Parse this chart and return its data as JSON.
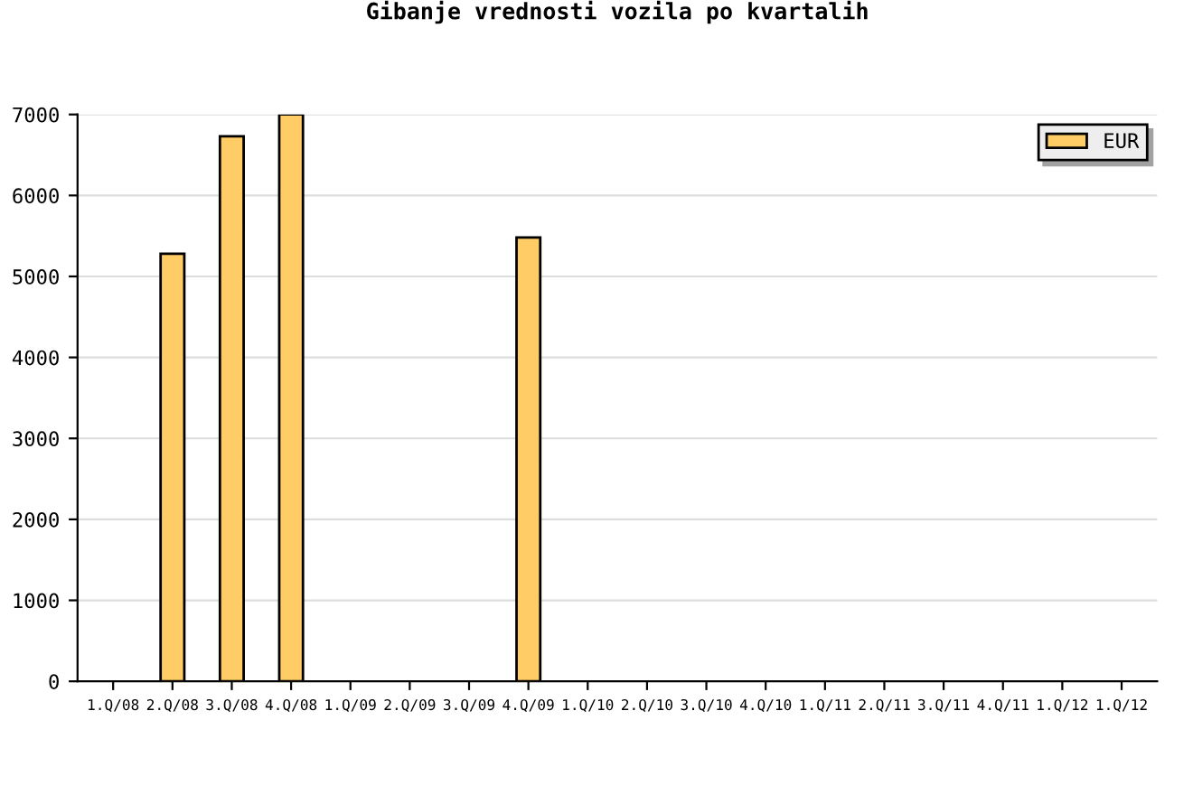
{
  "chart_data": {
    "type": "bar",
    "title": "Gibanje vrednosti vozila po kvartalih",
    "categories": [
      "1.Q/08",
      "2.Q/08",
      "3.Q/08",
      "4.Q/08",
      "1.Q/09",
      "2.Q/09",
      "3.Q/09",
      "4.Q/09",
      "1.Q/10",
      "2.Q/10",
      "3.Q/10",
      "4.Q/10",
      "1.Q/11",
      "2.Q/11",
      "3.Q/11",
      "4.Q/11",
      "1.Q/12",
      "1.Q/12"
    ],
    "series": [
      {
        "name": "EUR",
        "color": "#ffcc66",
        "values": [
          null,
          5280,
          6730,
          7000,
          null,
          null,
          null,
          5480,
          null,
          null,
          null,
          null,
          null,
          null,
          null,
          null,
          null,
          null
        ]
      }
    ],
    "ylim": [
      0,
      7000
    ],
    "yticks": [
      0,
      1000,
      2000,
      3000,
      4000,
      5000,
      6000,
      7000
    ],
    "grid": "y",
    "legend": "top right"
  }
}
